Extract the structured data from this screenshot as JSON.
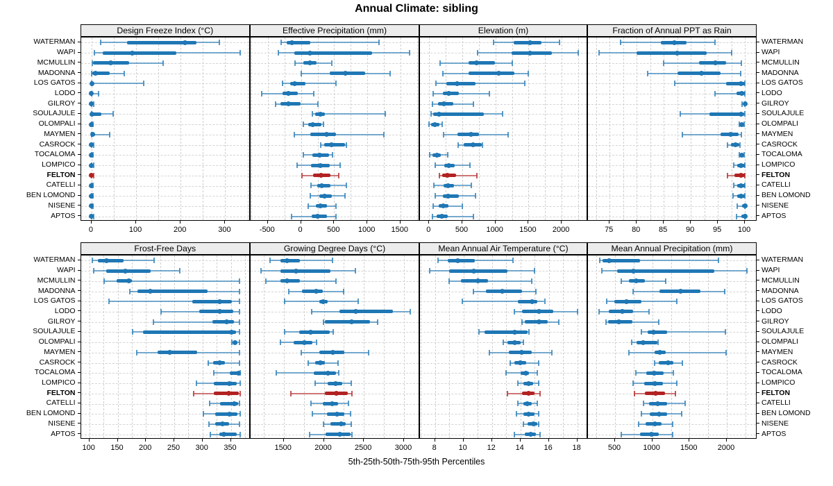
{
  "title": "Annual Climate: sibling",
  "caption": "5th-25th-50th-75th-95th Percentiles",
  "percentile_labels": [
    "5th",
    "25th",
    "50th",
    "75th",
    "95th"
  ],
  "stations": [
    "WATERMAN",
    "WAPI",
    "MCMULLIN",
    "MADONNA",
    "LOS GATOS",
    "LODO",
    "GILROY",
    "SOULAJULE",
    "OLOMPALI",
    "MAYMEN",
    "CASROCK",
    "TOCALOMA",
    "LOMPICO",
    "FELTON",
    "CATELLI",
    "BEN LOMOND",
    "NISENE",
    "APTOS"
  ],
  "highlight_station": "FELTON",
  "colors": {
    "series": "#1f77b4",
    "highlight": "#b22222",
    "strip_bg": "#ececec",
    "grid": "#cfcfcf",
    "border": "#000000",
    "text": "#000000"
  },
  "chart_data": [
    {
      "type": "dot-whisker",
      "title": "Design Freeze Index (°C)",
      "xlim": [
        -24,
        357
      ],
      "ticks": [
        0,
        100,
        200,
        300
      ],
      "series": [
        [
          20,
          80,
          210,
          235,
          287
        ],
        [
          7,
          25,
          92,
          190,
          333
        ],
        [
          2,
          3,
          43,
          85,
          161
        ],
        [
          0,
          2,
          9,
          41,
          73
        ],
        [
          0,
          0,
          1,
          4,
          117
        ],
        [
          0,
          0,
          0,
          2,
          16
        ],
        [
          0,
          0,
          0,
          1,
          5
        ],
        [
          0,
          0,
          1,
          22,
          48
        ],
        [
          0,
          0,
          0,
          1,
          3
        ],
        [
          0,
          0,
          3,
          8,
          40
        ],
        [
          0,
          0,
          0,
          2,
          5
        ],
        [
          0,
          0,
          0,
          1,
          4
        ],
        [
          0,
          0,
          0,
          2,
          5
        ],
        [
          0,
          0,
          0,
          2,
          5
        ],
        [
          0,
          0,
          0,
          2,
          4
        ],
        [
          0,
          0,
          0,
          2,
          4
        ],
        [
          0,
          0,
          0,
          2,
          4
        ],
        [
          0,
          0,
          0,
          2,
          5
        ]
      ]
    },
    {
      "type": "dot-whisker",
      "title": "Effective Precipitation (mm)",
      "xlim": [
        -760,
        1795
      ],
      "ticks": [
        -500,
        0,
        500,
        1000,
        1500
      ],
      "series": [
        [
          -300,
          -220,
          -140,
          145,
          1180
        ],
        [
          -345,
          -100,
          140,
          1075,
          1635
        ],
        [
          -90,
          35,
          140,
          230,
          460
        ],
        [
          0,
          430,
          670,
          970,
          1340
        ],
        [
          -275,
          -160,
          -90,
          65,
          530
        ],
        [
          -595,
          -280,
          -185,
          -45,
          190
        ],
        [
          -380,
          -310,
          -190,
          -10,
          260
        ],
        [
          175,
          210,
          290,
          360,
          1270
        ],
        [
          35,
          105,
          175,
          305,
          340
        ],
        [
          -100,
          140,
          390,
          530,
          1250
        ],
        [
          295,
          350,
          460,
          660,
          680
        ],
        [
          40,
          175,
          280,
          420,
          480
        ],
        [
          -60,
          155,
          290,
          430,
          595
        ],
        [
          15,
          180,
          300,
          445,
          565
        ],
        [
          155,
          250,
          315,
          445,
          690
        ],
        [
          140,
          280,
          350,
          470,
          665
        ],
        [
          110,
          225,
          290,
          390,
          525
        ],
        [
          -140,
          165,
          250,
          390,
          525
        ]
      ]
    },
    {
      "type": "dot-whisker",
      "title": "Elevation (m)",
      "xlim": [
        -139,
        2397
      ],
      "ticks": [
        0,
        500,
        1000,
        1500,
        2000
      ],
      "series": [
        [
          975,
          1275,
          1525,
          1695,
          1970
        ],
        [
          730,
          1240,
          1525,
          1850,
          2255
        ],
        [
          170,
          590,
          720,
          995,
          1255
        ],
        [
          205,
          590,
          1055,
          1290,
          1495
        ],
        [
          100,
          255,
          425,
          695,
          1440
        ],
        [
          65,
          205,
          300,
          450,
          905
        ],
        [
          45,
          135,
          220,
          360,
          670
        ],
        [
          30,
          65,
          145,
          825,
          1105
        ],
        [
          0,
          30,
          90,
          150,
          200
        ],
        [
          215,
          430,
          635,
          750,
          1195
        ],
        [
          440,
          520,
          660,
          790,
          805
        ],
        [
          5,
          45,
          115,
          180,
          285
        ],
        [
          90,
          230,
          300,
          390,
          615
        ],
        [
          150,
          195,
          275,
          405,
          720
        ],
        [
          70,
          220,
          290,
          370,
          635
        ],
        [
          90,
          205,
          285,
          450,
          695
        ],
        [
          55,
          145,
          210,
          290,
          495
        ],
        [
          45,
          115,
          195,
          275,
          670
        ]
      ]
    },
    {
      "type": "dot-whisker",
      "title": "Fraction of Annual PPT as Rain",
      "xlim": [
        71,
        102.3
      ],
      "ticks": [
        75,
        80,
        85,
        90,
        95,
        100
      ],
      "series": [
        [
          77,
          84.5,
          87,
          89.2,
          94.5
        ],
        [
          73,
          80,
          87.5,
          93,
          97.5
        ],
        [
          85,
          91.5,
          94.5,
          96.5,
          99.3
        ],
        [
          82,
          87.5,
          92,
          95.5,
          99.2
        ],
        [
          87,
          96.5,
          99.3,
          100,
          100
        ],
        [
          94.5,
          98.5,
          99.4,
          100,
          100
        ],
        [
          99.5,
          99.8,
          100,
          100,
          100
        ],
        [
          88,
          93.5,
          99.3,
          99.8,
          100
        ],
        [
          99,
          99.2,
          99.4,
          99.6,
          99.8
        ],
        [
          88.5,
          95.5,
          97.3,
          98.9,
          99.4
        ],
        [
          96.8,
          97.4,
          98.2,
          99,
          99.1
        ],
        [
          99,
          99.2,
          99.4,
          99.6,
          99.9
        ],
        [
          98,
          98.6,
          99.3,
          100,
          100
        ],
        [
          96.8,
          98.1,
          99.3,
          100,
          100
        ],
        [
          98,
          98.6,
          99.3,
          100,
          100
        ],
        [
          97.8,
          98.6,
          99.3,
          100,
          100
        ],
        [
          98.6,
          99.5,
          100,
          100,
          100
        ],
        [
          98.4,
          99.4,
          100,
          100,
          100
        ]
      ]
    },
    {
      "type": "dot-whisker",
      "title": "Frost-Free Days",
      "xlim": [
        85,
        385
      ],
      "ticks": [
        100,
        150,
        200,
        250,
        300,
        350
      ],
      "series": [
        [
          105,
          115,
          130,
          160,
          215
        ],
        [
          108,
          130,
          163,
          208,
          260
        ],
        [
          126,
          148,
          170,
          175,
          365
        ],
        [
          172,
          185,
          208,
          309,
          365
        ],
        [
          135,
          282,
          331,
          352,
          365
        ],
        [
          227,
          294,
          330,
          354,
          365
        ],
        [
          213,
          318,
          343,
          355,
          365
        ],
        [
          177,
          195,
          351,
          359,
          365
        ],
        [
          352,
          355,
          357,
          362,
          365
        ],
        [
          184,
          220,
          242,
          290,
          365
        ],
        [
          310,
          319,
          330,
          340,
          365
        ],
        [
          320,
          348,
          363,
          365,
          366
        ],
        [
          289,
          320,
          348,
          360,
          366
        ],
        [
          284,
          320,
          346,
          364,
          366
        ],
        [
          313,
          331,
          356,
          363,
          365
        ],
        [
          302,
          323,
          347,
          362,
          366
        ],
        [
          311,
          322,
          335,
          347,
          365
        ],
        [
          314,
          330,
          338,
          360,
          366
        ]
      ]
    },
    {
      "type": "dot-whisker",
      "title": "Growing Degree Days (°C)",
      "xlim": [
        1087,
        3199
      ],
      "ticks": [
        1500,
        2000,
        2500,
        3000
      ],
      "series": [
        [
          1330,
          1460,
          1545,
          1700,
          2110
        ],
        [
          1215,
          1455,
          1650,
          2080,
          2390
        ],
        [
          1275,
          1460,
          1545,
          1700,
          2155
        ],
        [
          1560,
          1730,
          1905,
          1985,
          2250
        ],
        [
          1510,
          1940,
          1990,
          2045,
          2425
        ],
        [
          1845,
          2195,
          2400,
          2860,
          3075
        ],
        [
          1995,
          2010,
          2350,
          2575,
          2675
        ],
        [
          1515,
          1695,
          1840,
          2070,
          2120
        ],
        [
          1460,
          1620,
          1755,
          1860,
          1905
        ],
        [
          1715,
          1945,
          2110,
          2255,
          2560
        ],
        [
          1805,
          1890,
          1955,
          2015,
          2180
        ],
        [
          1405,
          1875,
          2055,
          2155,
          2185
        ],
        [
          1895,
          2050,
          2150,
          2230,
          2345
        ],
        [
          1590,
          2010,
          2160,
          2300,
          2350
        ],
        [
          1840,
          1985,
          2100,
          2180,
          2305
        ],
        [
          1855,
          2040,
          2165,
          2255,
          2335
        ],
        [
          2000,
          2085,
          2215,
          2275,
          2340
        ],
        [
          1825,
          2020,
          2200,
          2330,
          2350
        ]
      ]
    },
    {
      "type": "dot-whisker",
      "title": "Mean Annual Air Temperature (°C)",
      "xlim": [
        6.94,
        18.75
      ],
      "ticks": [
        8,
        10,
        12,
        14,
        16,
        18
      ],
      "series": [
        [
          8.2,
          8.9,
          9.6,
          10.8,
          13.5
        ],
        [
          7.6,
          9.0,
          10.7,
          13.1,
          15.0
        ],
        [
          9.0,
          9.8,
          11.0,
          11.7,
          14.8
        ],
        [
          10.7,
          11.6,
          12.7,
          14.1,
          15.1
        ],
        [
          9.9,
          13.8,
          14.8,
          15.2,
          15.7
        ],
        [
          13.6,
          14.1,
          15.3,
          16.3,
          18.0
        ],
        [
          14.1,
          14.3,
          15.3,
          15.9,
          16.7
        ],
        [
          11.1,
          11.5,
          13.6,
          14.5,
          14.6
        ],
        [
          12.8,
          13.1,
          13.6,
          14.0,
          14.2
        ],
        [
          11.8,
          13.2,
          14.1,
          14.8,
          16.2
        ],
        [
          13.3,
          13.6,
          14.0,
          14.4,
          15.3
        ],
        [
          13.0,
          14.0,
          14.4,
          14.6,
          15.2
        ],
        [
          13.8,
          14.2,
          14.6,
          14.9,
          15.3
        ],
        [
          13.1,
          14.1,
          14.6,
          15.0,
          15.4
        ],
        [
          13.8,
          14.2,
          14.5,
          14.8,
          15.2
        ],
        [
          13.7,
          14.2,
          14.6,
          15.0,
          15.3
        ],
        [
          14.2,
          14.5,
          14.9,
          15.2,
          15.3
        ],
        [
          13.6,
          14.3,
          14.7,
          15.1,
          15.4
        ]
      ]
    },
    {
      "type": "dot-whisker",
      "title": "Mean Annual Precipitation (mm)",
      "xlim": [
        137,
        2410
      ],
      "ticks": [
        500,
        1000,
        1500,
        2000
      ],
      "series": [
        [
          300,
          330,
          420,
          835,
          1890
        ],
        [
          320,
          525,
          750,
          1835,
          2270
        ],
        [
          585,
          685,
          785,
          905,
          1185
        ],
        [
          740,
          1100,
          1380,
          1650,
          1975
        ],
        [
          390,
          495,
          655,
          855,
          1325
        ],
        [
          290,
          420,
          600,
          740,
          955
        ],
        [
          380,
          405,
          555,
          735,
          1085
        ],
        [
          855,
          940,
          1020,
          1200,
          1980
        ],
        [
          725,
          785,
          875,
          1065,
          1080
        ],
        [
          685,
          1035,
          1105,
          1185,
          1995
        ],
        [
          1035,
          1090,
          1215,
          1285,
          1400
        ],
        [
          780,
          920,
          1030,
          1150,
          1285
        ],
        [
          740,
          890,
          1035,
          1145,
          1325
        ],
        [
          760,
          900,
          1045,
          1170,
          1315
        ],
        [
          880,
          960,
          1075,
          1195,
          1440
        ],
        [
          855,
          970,
          1095,
          1200,
          1395
        ],
        [
          815,
          910,
          1035,
          1120,
          1270
        ],
        [
          580,
          840,
          990,
          1090,
          1270
        ]
      ]
    }
  ]
}
